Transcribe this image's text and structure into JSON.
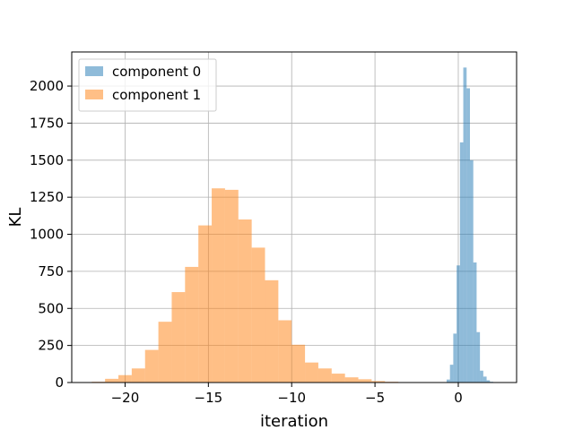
{
  "chart_data": {
    "type": "bar",
    "title": "",
    "xlabel": "iteration",
    "ylabel": "KL",
    "xlim": [
      -23.2,
      3.5
    ],
    "ylim": [
      0,
      2230
    ],
    "xticks": [
      -20,
      -15,
      -10,
      -5,
      0
    ],
    "xtick_labels": [
      "−20",
      "−15",
      "−10",
      "−5",
      "0"
    ],
    "yticks": [
      0,
      250,
      500,
      750,
      1000,
      1250,
      1500,
      1750,
      2000
    ],
    "ytick_labels": [
      "0",
      "250",
      "500",
      "750",
      "1000",
      "1250",
      "1500",
      "1750",
      "2000"
    ],
    "grid": true,
    "legend_position": "top-left",
    "series": [
      {
        "name": "component 0",
        "color": "#1f77b4",
        "alpha": 0.5,
        "bins": [
          {
            "x0": -0.9,
            "x1": -0.7,
            "value": 3
          },
          {
            "x0": -0.7,
            "x1": -0.5,
            "value": 20
          },
          {
            "x0": -0.5,
            "x1": -0.3,
            "value": 120
          },
          {
            "x0": -0.3,
            "x1": -0.1,
            "value": 330
          },
          {
            "x0": -0.1,
            "x1": 0.1,
            "value": 790
          },
          {
            "x0": 0.1,
            "x1": 0.3,
            "value": 1620
          },
          {
            "x0": 0.3,
            "x1": 0.5,
            "value": 2125
          },
          {
            "x0": 0.5,
            "x1": 0.7,
            "value": 1985
          },
          {
            "x0": 0.7,
            "x1": 0.9,
            "value": 1500
          },
          {
            "x0": 0.9,
            "x1": 1.1,
            "value": 810
          },
          {
            "x0": 1.1,
            "x1": 1.3,
            "value": 340
          },
          {
            "x0": 1.3,
            "x1": 1.5,
            "value": 80
          },
          {
            "x0": 1.5,
            "x1": 1.7,
            "value": 40
          },
          {
            "x0": 1.7,
            "x1": 1.9,
            "value": 15
          },
          {
            "x0": 1.9,
            "x1": 2.1,
            "value": 5
          },
          {
            "x0": 2.1,
            "x1": 2.3,
            "value": 2
          }
        ]
      },
      {
        "name": "component 1",
        "color": "#ff7f0e",
        "alpha": 0.5,
        "bins": [
          {
            "x0": -22.0,
            "x1": -21.2,
            "value": 5
          },
          {
            "x0": -21.2,
            "x1": -20.4,
            "value": 25
          },
          {
            "x0": -20.4,
            "x1": -19.6,
            "value": 50
          },
          {
            "x0": -19.6,
            "x1": -18.8,
            "value": 95
          },
          {
            "x0": -18.8,
            "x1": -18.0,
            "value": 220
          },
          {
            "x0": -18.0,
            "x1": -17.2,
            "value": 410
          },
          {
            "x0": -17.2,
            "x1": -16.4,
            "value": 610
          },
          {
            "x0": -16.4,
            "x1": -15.6,
            "value": 780
          },
          {
            "x0": -15.6,
            "x1": -14.8,
            "value": 1060
          },
          {
            "x0": -14.8,
            "x1": -14.0,
            "value": 1310
          },
          {
            "x0": -14.0,
            "x1": -13.2,
            "value": 1300
          },
          {
            "x0": -13.2,
            "x1": -12.4,
            "value": 1100
          },
          {
            "x0": -12.4,
            "x1": -11.6,
            "value": 910
          },
          {
            "x0": -11.6,
            "x1": -10.8,
            "value": 690
          },
          {
            "x0": -10.8,
            "x1": -10.0,
            "value": 420
          },
          {
            "x0": -10.0,
            "x1": -9.2,
            "value": 255
          },
          {
            "x0": -9.2,
            "x1": -8.4,
            "value": 135
          },
          {
            "x0": -8.4,
            "x1": -7.6,
            "value": 95
          },
          {
            "x0": -7.6,
            "x1": -6.8,
            "value": 60
          },
          {
            "x0": -6.8,
            "x1": -6.0,
            "value": 35
          },
          {
            "x0": -6.0,
            "x1": -5.2,
            "value": 22
          },
          {
            "x0": -5.2,
            "x1": -4.4,
            "value": 10
          },
          {
            "x0": -4.4,
            "x1": -3.6,
            "value": 5
          },
          {
            "x0": -3.6,
            "x1": -2.8,
            "value": 2
          }
        ]
      }
    ]
  }
}
